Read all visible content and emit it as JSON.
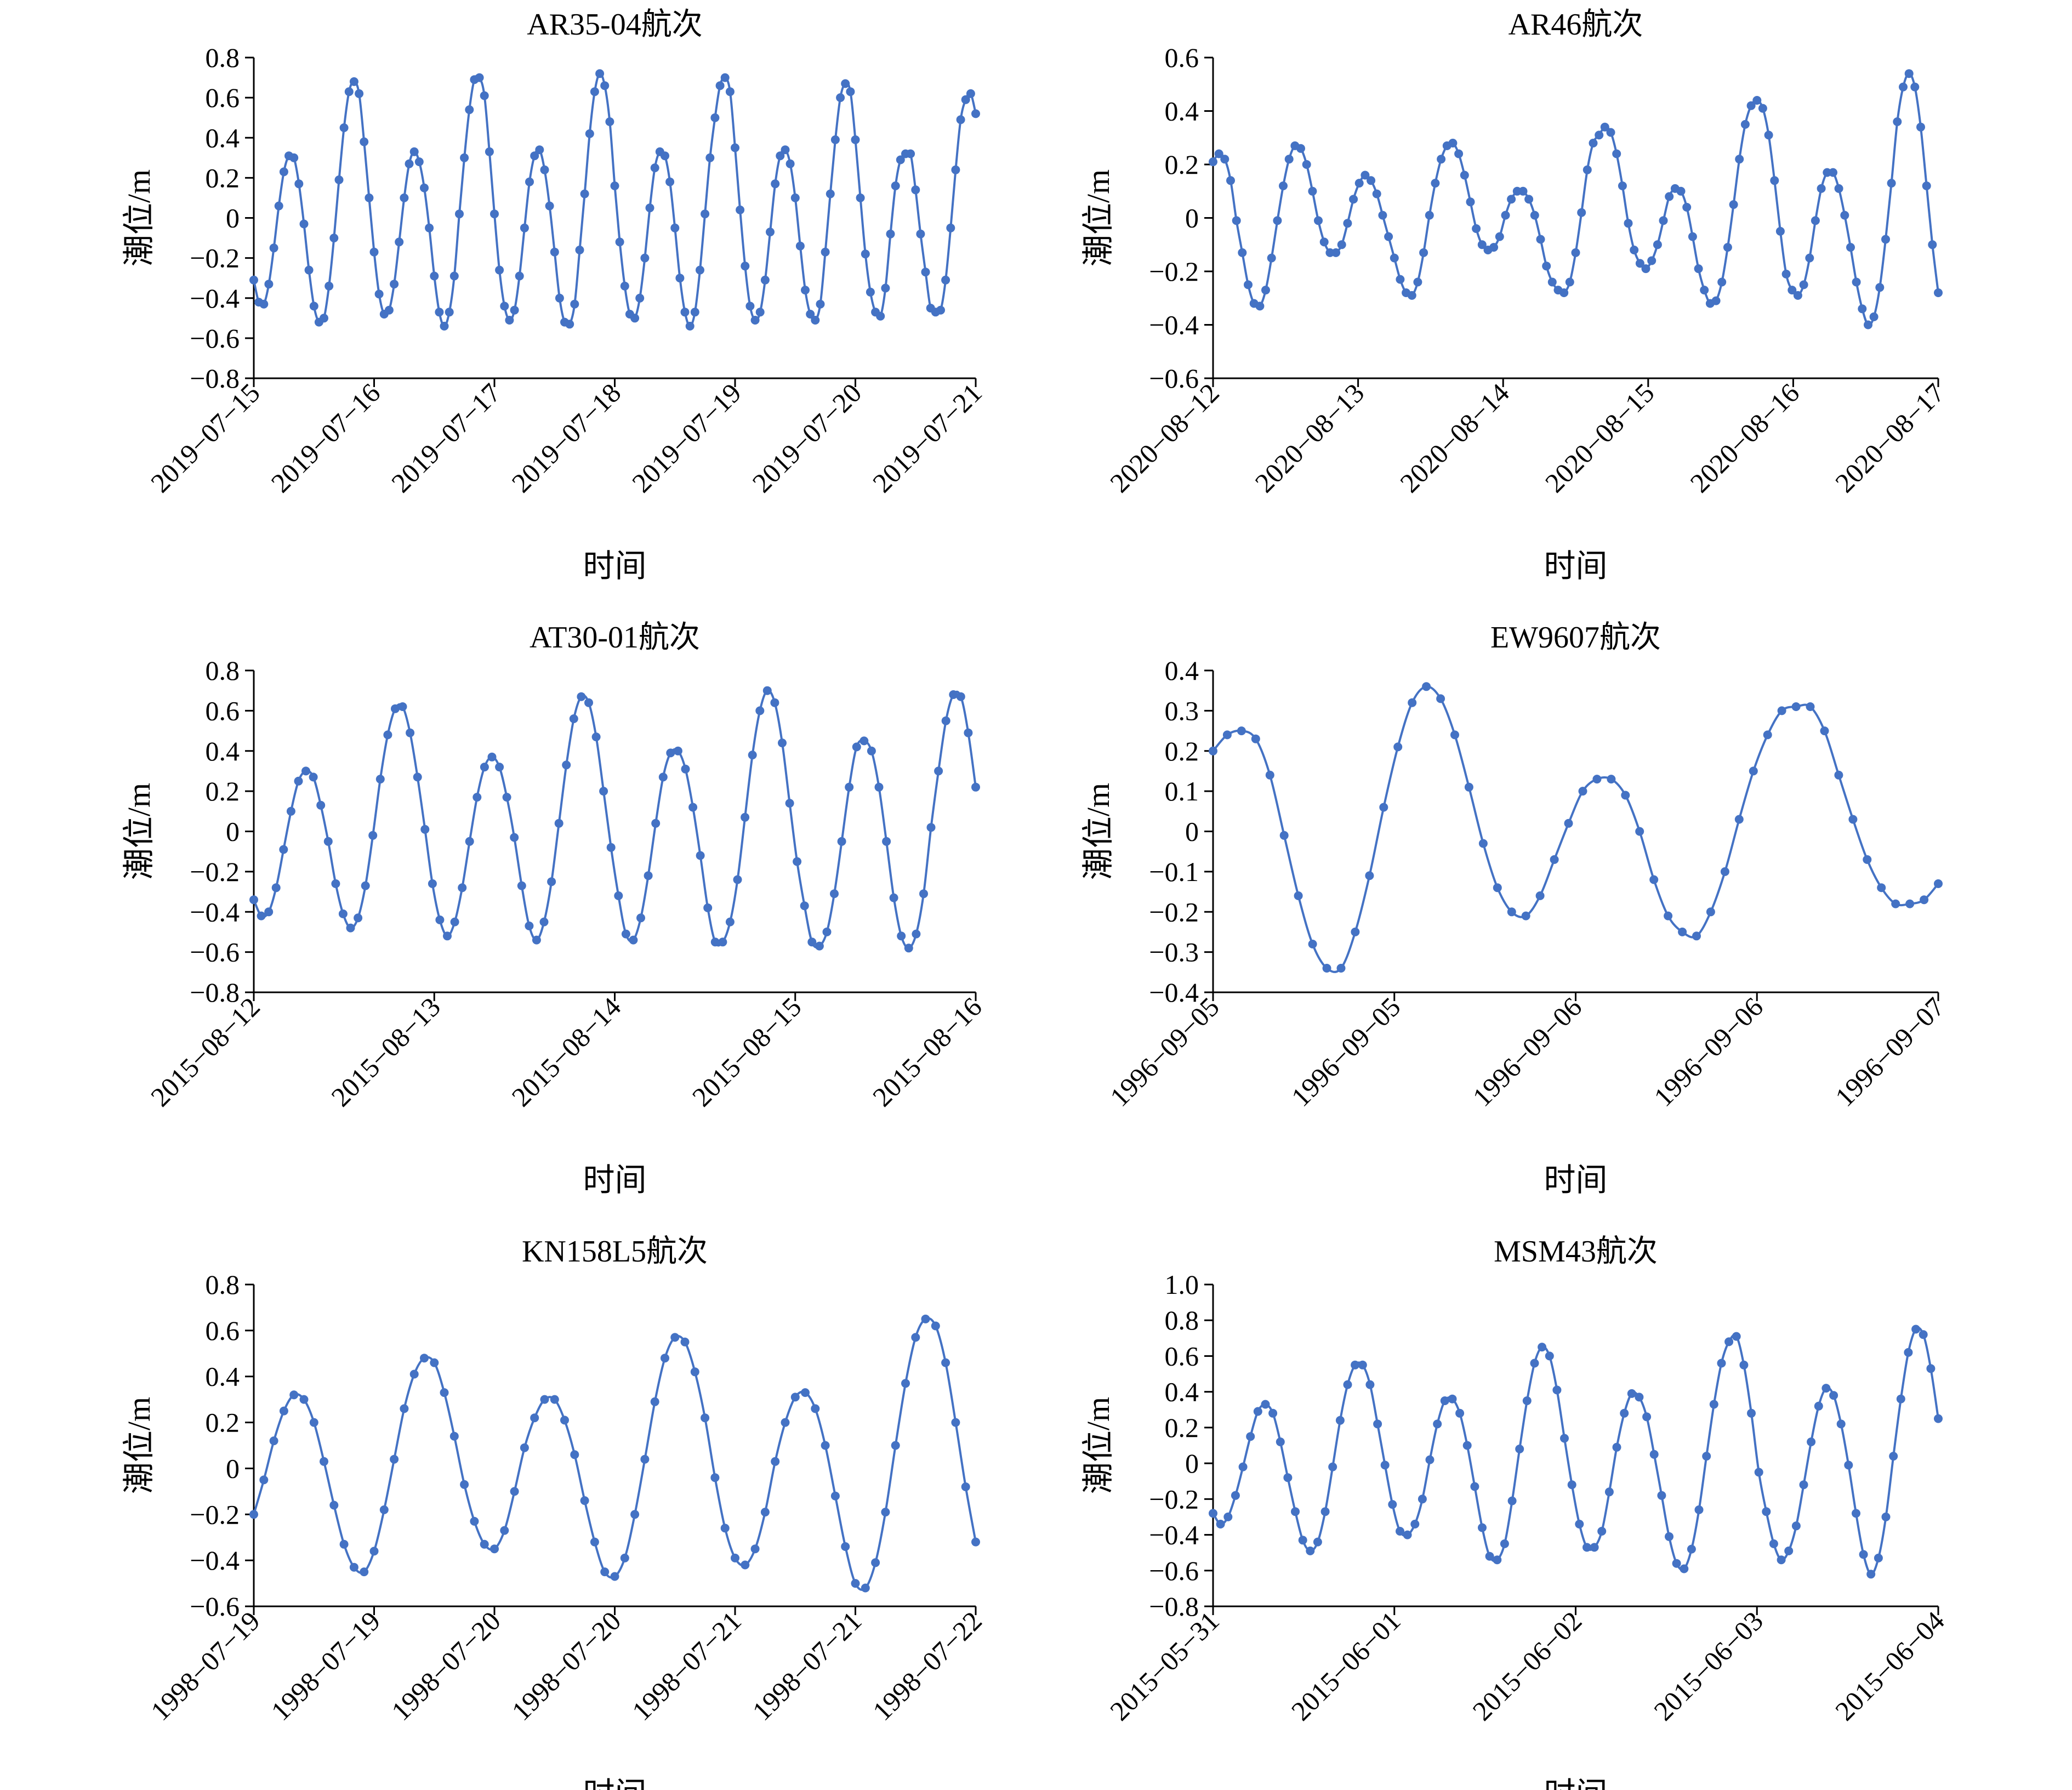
{
  "figure": {
    "xlabel_text": "时间",
    "ylabel_text": "潮位/m"
  },
  "style": {
    "line_color": "#4472C4",
    "axis_color": "#000000"
  },
  "chart_data": [
    {
      "type": "line",
      "title": "AR35-04航次",
      "xlabel": "时间",
      "ylabel": "潮位/m",
      "ylim": [
        -0.8,
        0.8
      ],
      "yticks": [
        "0.8",
        "0.6",
        "0.4",
        "0.2",
        "0",
        "−0.2",
        "−0.4",
        "−0.6",
        "−0.8"
      ],
      "xtick_labels": [
        "2019−07−15",
        "2019−07−16",
        "2019−07−17",
        "2019−07−18",
        "2019−07−19",
        "2019−07−20",
        "2019−07−21"
      ],
      "grid": false,
      "series": [
        {
          "values": [
            -0.31,
            -0.42,
            -0.43,
            -0.33,
            -0.15,
            0.06,
            0.23,
            0.31,
            0.3,
            0.17,
            -0.03,
            -0.26,
            -0.44,
            -0.52,
            -0.5,
            -0.34,
            -0.1,
            0.19,
            0.45,
            0.63,
            0.68,
            0.62,
            0.38,
            0.1,
            -0.17,
            -0.38,
            -0.48,
            -0.46,
            -0.33,
            -0.12,
            0.1,
            0.27,
            0.33,
            0.28,
            0.15,
            -0.05,
            -0.29,
            -0.47,
            -0.54,
            -0.47,
            -0.29,
            0.02,
            0.3,
            0.54,
            0.69,
            0.7,
            0.61,
            0.33,
            0.02,
            -0.26,
            -0.44,
            -0.51,
            -0.46,
            -0.29,
            -0.05,
            0.18,
            0.31,
            0.34,
            0.24,
            0.06,
            -0.17,
            -0.4,
            -0.52,
            -0.53,
            -0.43,
            -0.16,
            0.12,
            0.42,
            0.63,
            0.72,
            0.66,
            0.48,
            0.16,
            -0.12,
            -0.34,
            -0.48,
            -0.5,
            -0.4,
            -0.2,
            0.05,
            0.25,
            0.33,
            0.31,
            0.18,
            -0.05,
            -0.3,
            -0.47,
            -0.54,
            -0.47,
            -0.26,
            0.02,
            0.3,
            0.5,
            0.66,
            0.7,
            0.63,
            0.35,
            0.04,
            -0.24,
            -0.44,
            -0.51,
            -0.47,
            -0.31,
            -0.07,
            0.17,
            0.31,
            0.34,
            0.27,
            0.1,
            -0.14,
            -0.36,
            -0.48,
            -0.51,
            -0.43,
            -0.17,
            0.12,
            0.39,
            0.6,
            0.67,
            0.63,
            0.39,
            0.1,
            -0.18,
            -0.37,
            -0.47,
            -0.49,
            -0.35,
            -0.08,
            0.16,
            0.29,
            0.32,
            0.32,
            0.14,
            -0.08,
            -0.27,
            -0.45,
            -0.47,
            -0.46,
            -0.31,
            -0.05,
            0.24,
            0.49,
            0.59,
            0.62,
            0.52
          ]
        }
      ]
    },
    {
      "type": "line",
      "title": "AR46航次",
      "xlabel": "时间",
      "ylabel": "潮位/m",
      "ylim": [
        -0.6,
        0.6
      ],
      "yticks": [
        "0.6",
        "0.4",
        "0.2",
        "0",
        "−0.2",
        "−0.4",
        "−0.6"
      ],
      "xtick_labels": [
        "2020−08−12",
        "2020−08−13",
        "2020−08−14",
        "2020−08−15",
        "2020−08−16",
        "2020−08−17"
      ],
      "grid": false,
      "series": [
        {
          "values": [
            0.21,
            0.24,
            0.22,
            0.14,
            -0.01,
            -0.13,
            -0.25,
            -0.32,
            -0.33,
            -0.27,
            -0.15,
            -0.01,
            0.12,
            0.22,
            0.27,
            0.26,
            0.2,
            0.1,
            -0.01,
            -0.09,
            -0.13,
            -0.13,
            -0.1,
            -0.02,
            0.07,
            0.13,
            0.16,
            0.14,
            0.09,
            0.01,
            -0.07,
            -0.15,
            -0.23,
            -0.28,
            -0.29,
            -0.24,
            -0.13,
            0.01,
            0.13,
            0.22,
            0.27,
            0.28,
            0.24,
            0.16,
            0.06,
            -0.04,
            -0.1,
            -0.12,
            -0.11,
            -0.07,
            0.01,
            0.07,
            0.1,
            0.1,
            0.07,
            0.01,
            -0.08,
            -0.18,
            -0.24,
            -0.27,
            -0.28,
            -0.24,
            -0.13,
            0.02,
            0.18,
            0.28,
            0.31,
            0.34,
            0.32,
            0.24,
            0.12,
            -0.02,
            -0.12,
            -0.17,
            -0.19,
            -0.16,
            -0.1,
            -0.01,
            0.08,
            0.11,
            0.1,
            0.04,
            -0.07,
            -0.19,
            -0.27,
            -0.32,
            -0.31,
            -0.24,
            -0.11,
            0.05,
            0.22,
            0.35,
            0.42,
            0.44,
            0.41,
            0.31,
            0.14,
            -0.05,
            -0.21,
            -0.27,
            -0.29,
            -0.25,
            -0.15,
            -0.01,
            0.11,
            0.17,
            0.17,
            0.11,
            0.01,
            -0.11,
            -0.24,
            -0.34,
            -0.4,
            -0.37,
            -0.26,
            -0.08,
            0.13,
            0.36,
            0.49,
            0.54,
            0.49,
            0.34,
            0.12,
            -0.1,
            -0.28
          ]
        }
      ]
    },
    {
      "type": "line",
      "title": "AT30-01航次",
      "xlabel": "时间",
      "ylabel": "潮位/m",
      "ylim": [
        -0.8,
        0.8
      ],
      "yticks": [
        "0.8",
        "0.6",
        "0.4",
        "0.2",
        "0",
        "−0.2",
        "−0.4",
        "−0.6",
        "−0.8"
      ],
      "xtick_labels": [
        "2015−08−12",
        "2015−08−13",
        "2015−08−14",
        "2015−08−15",
        "2015−08−16"
      ],
      "grid": false,
      "series": [
        {
          "values": [
            -0.34,
            -0.42,
            -0.4,
            -0.28,
            -0.09,
            0.1,
            0.25,
            0.3,
            0.27,
            0.13,
            -0.05,
            -0.26,
            -0.41,
            -0.48,
            -0.43,
            -0.27,
            -0.02,
            0.26,
            0.48,
            0.61,
            0.62,
            0.49,
            0.27,
            0.01,
            -0.26,
            -0.44,
            -0.52,
            -0.45,
            -0.28,
            -0.05,
            0.17,
            0.32,
            0.37,
            0.32,
            0.17,
            -0.03,
            -0.27,
            -0.47,
            -0.54,
            -0.45,
            -0.25,
            0.04,
            0.33,
            0.56,
            0.67,
            0.64,
            0.47,
            0.2,
            -0.08,
            -0.32,
            -0.51,
            -0.54,
            -0.43,
            -0.22,
            0.04,
            0.27,
            0.39,
            0.4,
            0.31,
            0.12,
            -0.12,
            -0.38,
            -0.55,
            -0.55,
            -0.45,
            -0.24,
            0.07,
            0.38,
            0.6,
            0.7,
            0.64,
            0.44,
            0.14,
            -0.15,
            -0.37,
            -0.55,
            -0.57,
            -0.5,
            -0.31,
            -0.05,
            0.22,
            0.42,
            0.45,
            0.4,
            0.22,
            -0.05,
            -0.33,
            -0.52,
            -0.58,
            -0.51,
            -0.31,
            0.02,
            0.3,
            0.55,
            0.68,
            0.67,
            0.49,
            0.22
          ]
        }
      ]
    },
    {
      "type": "line",
      "title": "EW9607航次",
      "xlabel": "时间",
      "ylabel": "潮位/m",
      "ylim": [
        -0.4,
        0.4
      ],
      "yticks": [
        "0.4",
        "0.3",
        "0.2",
        "0.1",
        "0",
        "−0.1",
        "−0.2",
        "−0.3",
        "−0.4"
      ],
      "xtick_labels": [
        "1996−09−05",
        "1996−09−05",
        "1996−09−06",
        "1996−09−06",
        "1996−09−07"
      ],
      "grid": false,
      "series": [
        {
          "values": [
            0.2,
            0.24,
            0.25,
            0.23,
            0.14,
            -0.01,
            -0.16,
            -0.28,
            -0.34,
            -0.34,
            -0.25,
            -0.11,
            0.06,
            0.21,
            0.32,
            0.36,
            0.33,
            0.24,
            0.11,
            -0.03,
            -0.14,
            -0.2,
            -0.21,
            -0.16,
            -0.07,
            0.02,
            0.1,
            0.13,
            0.13,
            0.09,
            0.0,
            -0.12,
            -0.21,
            -0.25,
            -0.26,
            -0.2,
            -0.1,
            0.03,
            0.15,
            0.24,
            0.3,
            0.31,
            0.31,
            0.25,
            0.14,
            0.03,
            -0.07,
            -0.14,
            -0.18,
            -0.18,
            -0.17,
            -0.13
          ]
        }
      ]
    },
    {
      "type": "line",
      "title": "KN158L5航次",
      "xlabel": "时间",
      "ylabel": "潮位/m",
      "ylim": [
        -0.6,
        0.8
      ],
      "yticks": [
        "0.8",
        "0.6",
        "0.4",
        "0.2",
        "0",
        "−0.2",
        "−0.4",
        "−0.6"
      ],
      "xtick_labels": [
        "1998−07−19",
        "1998−07−19",
        "1998−07−20",
        "1998−07−20",
        "1998−07−21",
        "1998−07−21",
        "1998−07−22"
      ],
      "grid": false,
      "series": [
        {
          "values": [
            -0.2,
            -0.05,
            0.12,
            0.25,
            0.32,
            0.3,
            0.2,
            0.03,
            -0.16,
            -0.33,
            -0.43,
            -0.45,
            -0.36,
            -0.18,
            0.04,
            0.26,
            0.41,
            0.48,
            0.46,
            0.33,
            0.14,
            -0.07,
            -0.23,
            -0.33,
            -0.35,
            -0.27,
            -0.1,
            0.09,
            0.22,
            0.3,
            0.3,
            0.21,
            0.06,
            -0.14,
            -0.32,
            -0.45,
            -0.47,
            -0.39,
            -0.2,
            0.04,
            0.29,
            0.48,
            0.57,
            0.55,
            0.42,
            0.22,
            -0.04,
            -0.26,
            -0.39,
            -0.42,
            -0.35,
            -0.19,
            0.03,
            0.2,
            0.31,
            0.33,
            0.26,
            0.1,
            -0.12,
            -0.34,
            -0.5,
            -0.52,
            -0.41,
            -0.19,
            0.1,
            0.37,
            0.57,
            0.65,
            0.62,
            0.46,
            0.2,
            -0.08,
            -0.32
          ]
        }
      ]
    },
    {
      "type": "line",
      "title": "MSM43航次",
      "xlabel": "时间",
      "ylabel": "潮位/m",
      "ylim": [
        -0.8,
        1.0
      ],
      "yticks": [
        "1.0",
        "0.8",
        "0.6",
        "0.4",
        "0.2",
        "0",
        "−0.2",
        "−0.4",
        "−0.6",
        "−0.8"
      ],
      "xtick_labels": [
        "2015−05−31",
        "2015−06−01",
        "2015−06−02",
        "2015−06−03",
        "2015−06−04"
      ],
      "grid": false,
      "series": [
        {
          "values": [
            -0.28,
            -0.34,
            -0.3,
            -0.18,
            -0.02,
            0.15,
            0.29,
            0.33,
            0.28,
            0.12,
            -0.08,
            -0.27,
            -0.43,
            -0.49,
            -0.44,
            -0.27,
            -0.02,
            0.24,
            0.44,
            0.55,
            0.55,
            0.44,
            0.22,
            -0.01,
            -0.23,
            -0.38,
            -0.4,
            -0.34,
            -0.2,
            0.02,
            0.22,
            0.35,
            0.36,
            0.28,
            0.1,
            -0.13,
            -0.36,
            -0.52,
            -0.54,
            -0.45,
            -0.21,
            0.08,
            0.35,
            0.56,
            0.65,
            0.6,
            0.41,
            0.14,
            -0.12,
            -0.34,
            -0.47,
            -0.47,
            -0.38,
            -0.16,
            0.09,
            0.28,
            0.39,
            0.37,
            0.26,
            0.05,
            -0.18,
            -0.41,
            -0.56,
            -0.59,
            -0.48,
            -0.26,
            0.04,
            0.33,
            0.56,
            0.68,
            0.71,
            0.55,
            0.28,
            -0.05,
            -0.27,
            -0.45,
            -0.54,
            -0.49,
            -0.35,
            -0.12,
            0.12,
            0.32,
            0.42,
            0.38,
            0.22,
            -0.01,
            -0.28,
            -0.51,
            -0.62,
            -0.53,
            -0.3,
            0.04,
            0.36,
            0.62,
            0.75,
            0.72,
            0.53,
            0.25
          ]
        }
      ]
    }
  ]
}
